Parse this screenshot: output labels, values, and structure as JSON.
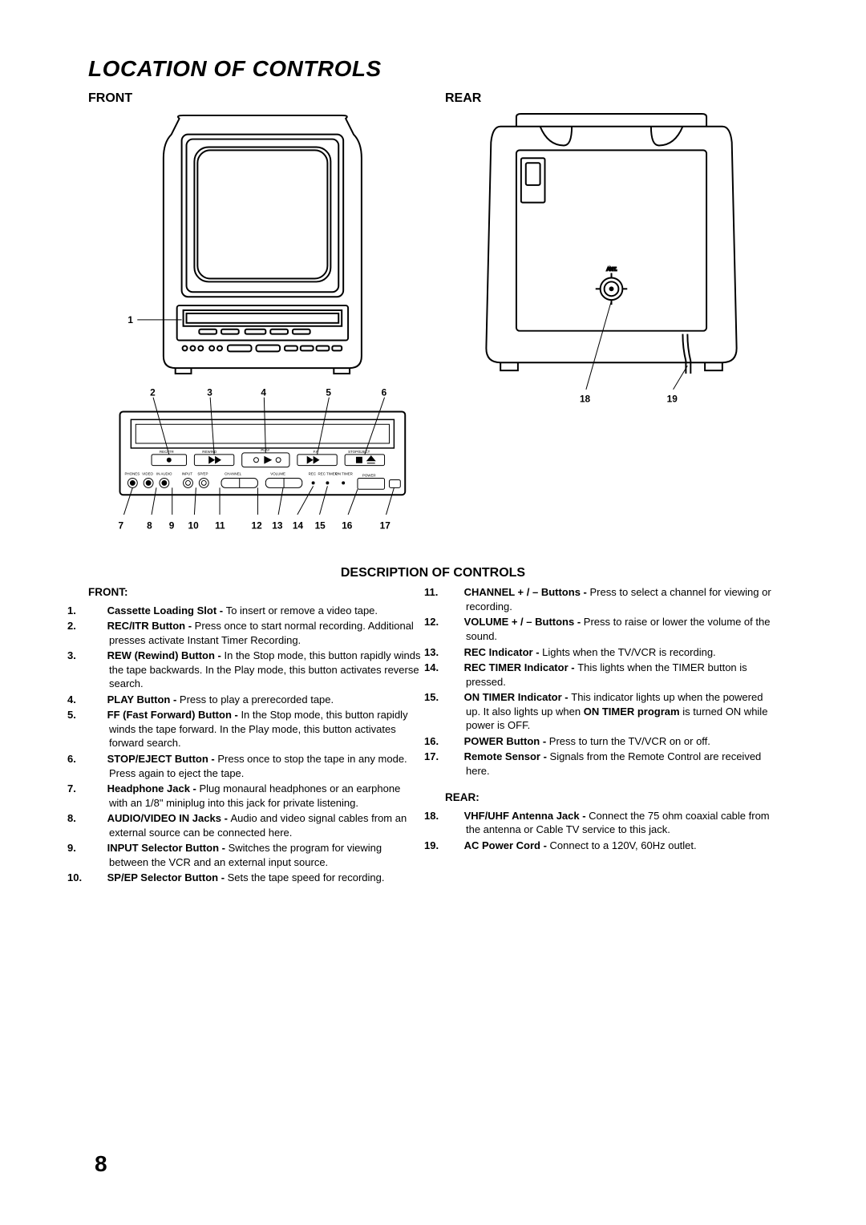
{
  "title": "LOCATION OF CONTROLS",
  "front_heading": "FRONT",
  "rear_heading": "REAR",
  "section_title": "DESCRIPTION OF CONTROLS",
  "front_subhead": "FRONT:",
  "rear_subhead": "REAR:",
  "page_number": "8",
  "colors": {
    "background": "#ffffff",
    "text": "#000000",
    "stroke": "#000000",
    "fill_white": "#ffffff",
    "fill_black": "#000000"
  },
  "diagram_front": {
    "callout_1": "1",
    "row_callouts": [
      "2",
      "3",
      "4",
      "5",
      "6"
    ],
    "panel_row_callouts": [
      "7",
      "8",
      "9",
      "10",
      "11",
      "12",
      "13",
      "14",
      "15",
      "16",
      "17"
    ],
    "panel_labels": {
      "rec_itr": "REC/ITR",
      "rewind": "REWIND",
      "play": "PLAY",
      "ff": "F.F",
      "stop_eject": "STOP/EJECT",
      "phones": "PHONES",
      "video": "VIDEO",
      "audio_in": "IN  AUDIO",
      "input": "INPUT",
      "sp_ep": "SP/EP",
      "channel": "CHANNEL",
      "volume": "VOLUME",
      "rec": "REC",
      "rec_timer": "REC TIMER",
      "on_timer": "ON TIMER",
      "power": "POWER"
    }
  },
  "diagram_rear": {
    "callouts": [
      "18",
      "19"
    ],
    "ant_label": "ANT."
  },
  "controls_left": [
    {
      "n": "1.",
      "label": "Cassette Loading Slot - ",
      "text": "To insert or remove a video tape."
    },
    {
      "n": "2.",
      "label": "REC/ITR Button - ",
      "text": "Press once to start normal recording. Additional presses activate Instant Timer Recording."
    },
    {
      "n": "3.",
      "label": "REW (Rewind) Button - ",
      "text": "In the Stop mode, this button rapidly winds the tape backwards. In the Play mode, this button activates reverse search."
    },
    {
      "n": "4.",
      "label": "PLAY Button - ",
      "text": "Press to play a prerecorded tape."
    },
    {
      "n": "5.",
      "label": "FF (Fast Forward) Button - ",
      "text": "In the Stop mode, this button rapidly winds the tape forward. In the Play mode, this button activates forward search."
    },
    {
      "n": "6.",
      "label": "STOP/EJECT Button - ",
      "text": "Press once to stop the tape in any mode. Press again to eject the tape."
    },
    {
      "n": "7.",
      "label": "Headphone Jack - ",
      "text": "Plug monaural headphones or an earphone with an 1/8\" miniplug into this jack for private listening."
    },
    {
      "n": "8.",
      "label": "AUDIO/VIDEO IN Jacks - ",
      "text": "Audio and video signal cables from an external source can be connected here."
    },
    {
      "n": "9.",
      "label": "INPUT Selector Button - ",
      "text": "Switches the program for viewing between the VCR and an external input source."
    },
    {
      "n": "10.",
      "label": "SP/EP Selector Button - ",
      "text": "Sets the tape speed for recording."
    }
  ],
  "controls_right": [
    {
      "n": "11.",
      "label": "CHANNEL + / – Buttons - ",
      "text": "Press to select a channel for viewing or recording."
    },
    {
      "n": "12.",
      "label": "VOLUME + / – Buttons - ",
      "text": "Press to raise or lower the volume of the sound."
    },
    {
      "n": "13.",
      "label": "REC Indicator - ",
      "text": "Lights when the TV/VCR is recording."
    },
    {
      "n": "14.",
      "label": "REC TIMER Indicator - ",
      "text": "This lights when the TIMER button is pressed."
    },
    {
      "n": "15.",
      "label": "ON TIMER Indicator - ",
      "text": "This indicator lights up when the powered up. It also lights up when <b>ON TIMER program</b> is turned ON while power is OFF."
    },
    {
      "n": "16.",
      "label": "POWER Button - ",
      "text": "Press to turn the TV/VCR on or off."
    },
    {
      "n": "17.",
      "label": "Remote Sensor - ",
      "text": "Signals from the Remote Control are received here."
    }
  ],
  "controls_rear": [
    {
      "n": "18.",
      "label": "VHF/UHF Antenna Jack - ",
      "text": "Connect the 75 ohm coaxial cable from the antenna or Cable TV service to this jack."
    },
    {
      "n": "19.",
      "label": "AC Power Cord - ",
      "text": "Connect to a 120V, 60Hz outlet."
    }
  ]
}
